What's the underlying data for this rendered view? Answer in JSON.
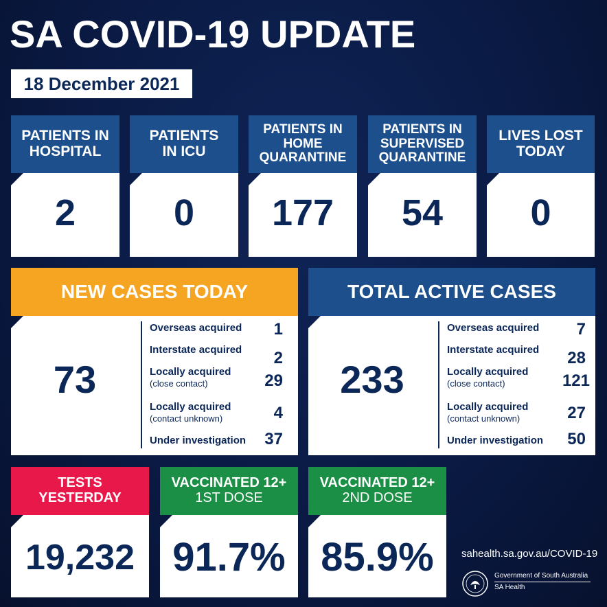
{
  "title": "SA COVID-19 UPDATE",
  "date": "18 December 2021",
  "stats": [
    {
      "label": "PATIENTS IN HOSPITAL",
      "value": "2"
    },
    {
      "label": "PATIENTS IN ICU",
      "value": "0"
    },
    {
      "label": "PATIENTS IN HOME QUARANTINE",
      "value": "177"
    },
    {
      "label": "PATIENTS IN SUPERVISED QUARANTINE",
      "value": "54"
    },
    {
      "label": "LIVES LOST TODAY",
      "value": "0"
    }
  ],
  "new_cases": {
    "title": "NEW CASES TODAY",
    "total": "73",
    "rows": [
      {
        "label": "Overseas acquired",
        "sub": "",
        "value": "1"
      },
      {
        "label": "Interstate acquired",
        "sub": "",
        "value": "2"
      },
      {
        "label": "Locally acquired",
        "sub": "(close contact)",
        "value": "29"
      },
      {
        "label": "Locally acquired",
        "sub": "(contact unknown)",
        "value": "4"
      },
      {
        "label": "Under investigation",
        "sub": "",
        "value": "37"
      }
    ]
  },
  "active_cases": {
    "title": "TOTAL ACTIVE CASES",
    "total": "233",
    "rows": [
      {
        "label": "Overseas acquired",
        "sub": "",
        "value": "7"
      },
      {
        "label": "Interstate acquired",
        "sub": "",
        "value": "28"
      },
      {
        "label": "Locally acquired",
        "sub": "(close contact)",
        "value": "121"
      },
      {
        "label": "Locally acquired",
        "sub": "(contact unknown)",
        "value": "27"
      },
      {
        "label": "Under investigation",
        "sub": "",
        "value": "50"
      }
    ]
  },
  "tests": {
    "label_line1": "TESTS",
    "label_line2": "YESTERDAY",
    "value": "19,232"
  },
  "vacc1": {
    "label_line1": "VACCINATED 12+",
    "label_line2": "1ST DOSE",
    "value": "91.7%"
  },
  "vacc2": {
    "label_line1": "VACCINATED 12+",
    "label_line2": "2ND DOSE",
    "value": "85.9%"
  },
  "footer": {
    "url": "sahealth.sa.gov.au/COVID-19",
    "gov_line1": "Government of South Australia",
    "gov_line2": "SA Health"
  },
  "colors": {
    "background": "#0a1a44",
    "header_blue": "#1d4f8c",
    "header_orange": "#f5a521",
    "header_red": "#e8184b",
    "header_green": "#1b8f45",
    "number_navy": "#0b2758"
  }
}
